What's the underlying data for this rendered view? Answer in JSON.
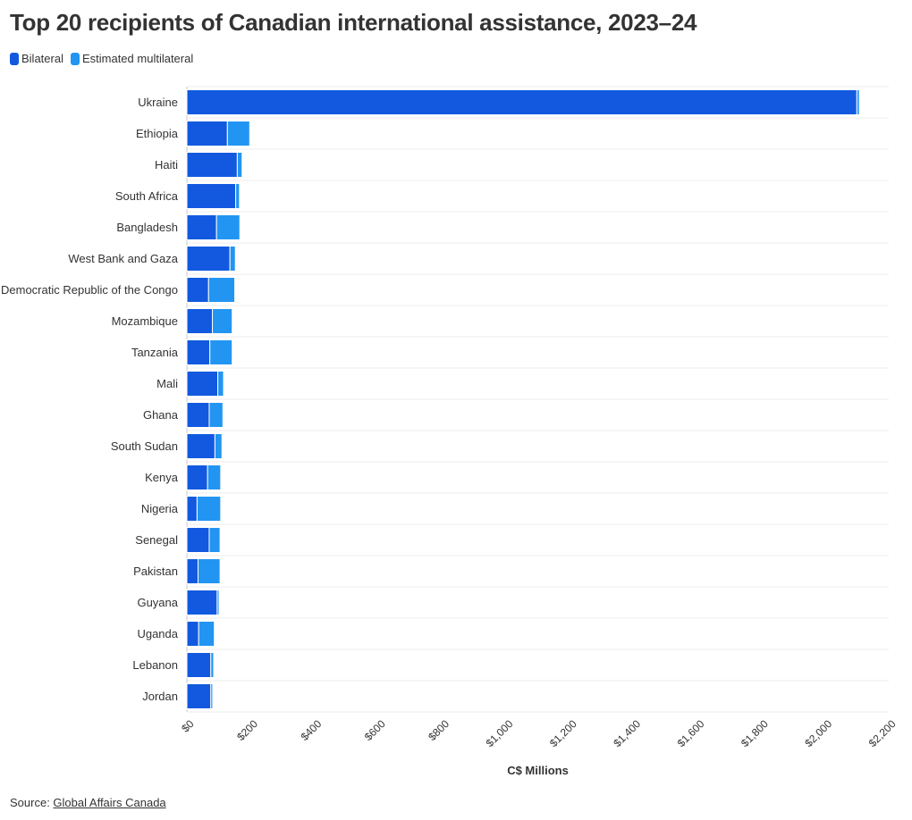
{
  "chart_data": {
    "type": "bar",
    "orientation": "horizontal",
    "stacked": true,
    "title": "Top 20 recipients of Canadian international assistance, 2023–24",
    "xlabel": "C$ Millions",
    "xlim": [
      0,
      2200
    ],
    "x_ticks": [
      {
        "value": 0,
        "label": "$0"
      },
      {
        "value": 200,
        "label": "$200"
      },
      {
        "value": 400,
        "label": "$400"
      },
      {
        "value": 600,
        "label": "$600"
      },
      {
        "value": 800,
        "label": "$800"
      },
      {
        "value": 1000,
        "label": "$1,000"
      },
      {
        "value": 1200,
        "label": "$1,200"
      },
      {
        "value": 1400,
        "label": "$1,400"
      },
      {
        "value": 1600,
        "label": "$1,600"
      },
      {
        "value": 1800,
        "label": "$1,800"
      },
      {
        "value": 2000,
        "label": "$2,000"
      },
      {
        "value": 2200,
        "label": "$2,200"
      }
    ],
    "legend_position": "top-left",
    "grid": true,
    "categories": [
      "Ukraine",
      "Ethiopia",
      "Haiti",
      "South Africa",
      "Bangladesh",
      "West Bank and Gaza",
      "Democratic Republic of the Congo",
      "Mozambique",
      "Tanzania",
      "Mali",
      "Ghana",
      "South Sudan",
      "Kenya",
      "Nigeria",
      "Senegal",
      "Pakistan",
      "Guyana",
      "Uganda",
      "Lebanon",
      "Jordan"
    ],
    "series": [
      {
        "name": "Bilateral",
        "color": "#1259e0",
        "values": [
          2100,
          127,
          158,
          153,
          93,
          135,
          68,
          80,
          72,
          97,
          70,
          88,
          65,
          32,
          70,
          35,
          95,
          37,
          75,
          75
        ]
      },
      {
        "name": "Estimated multilateral",
        "color": "#2295f2",
        "values": [
          8,
          70,
          15,
          12,
          73,
          17,
          82,
          62,
          70,
          18,
          43,
          22,
          41,
          74,
          34,
          69,
          6,
          49,
          9,
          6
        ]
      }
    ]
  },
  "source": {
    "prefix": "Source: ",
    "link_text": "Global Affairs Canada"
  }
}
